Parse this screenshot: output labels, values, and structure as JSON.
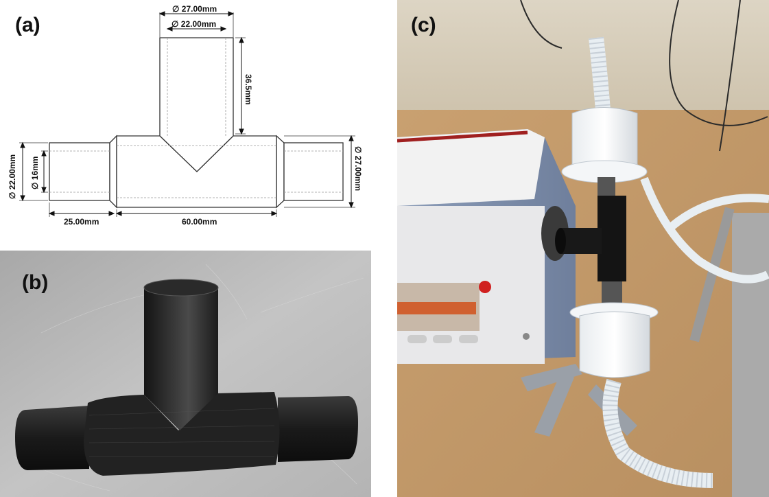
{
  "panels": {
    "a": {
      "label": "(a)"
    },
    "b": {
      "label": "(b)"
    },
    "c": {
      "label": "(c)"
    }
  },
  "dimensions": {
    "top_outer": "∅ 27.00mm",
    "top_inner": "∅ 22.00mm",
    "top_height": "36.5mm",
    "left_outer": "∅ 22.00mm",
    "left_inner": "∅ 16mm",
    "right_outer": "∅ 27.00mm",
    "left_length": "25.00mm",
    "body_length": "60.00mm"
  }
}
